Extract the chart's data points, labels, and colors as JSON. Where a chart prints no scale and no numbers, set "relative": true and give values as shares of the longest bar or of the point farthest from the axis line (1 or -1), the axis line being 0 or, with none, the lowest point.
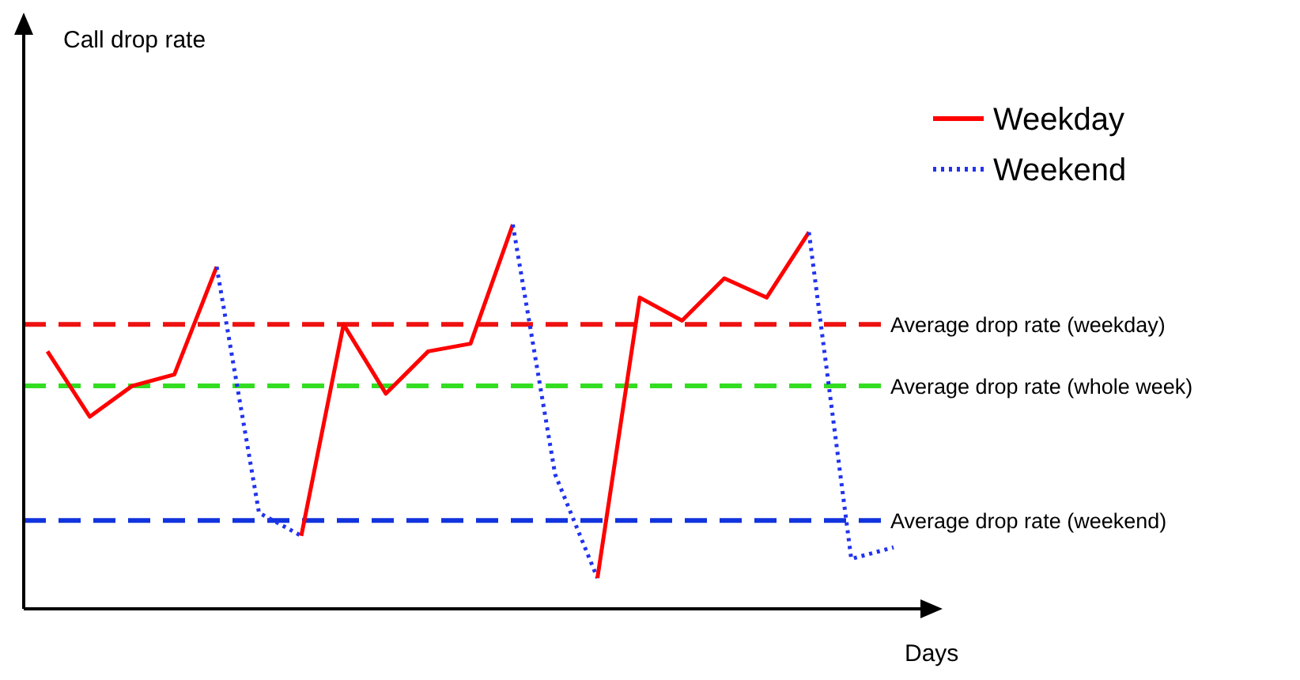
{
  "chart_data": {
    "type": "line",
    "relative": true,
    "xlabel": "Days",
    "annotations": [
      "Call drop rate"
    ],
    "legend": "top right",
    "marker": "none",
    "categories": [
      null,
      null,
      null,
      null,
      null,
      null,
      null,
      null,
      null,
      null,
      null,
      null,
      null,
      null,
      null,
      null,
      null,
      null,
      null,
      null,
      null
    ],
    "series": [
      {
        "name": "Weekday",
        "color": "#ff0000",
        "line_style": "solid",
        "values": [
          0.67,
          0.5,
          0.58,
          0.61,
          0.89,
          null,
          null,
          null,
          null,
          null,
          null,
          null,
          null,
          null,
          null,
          null,
          null,
          null,
          null,
          null,
          null
        ]
      },
      {
        "name": "Weekend",
        "color": "#2233ee",
        "line_style": "dotted",
        "values": [
          null,
          null,
          null,
          null,
          0.89,
          0.25,
          0.19,
          null,
          null,
          null,
          null,
          null,
          null,
          null,
          null,
          null,
          null,
          null,
          null,
          null,
          null
        ]
      },
      {
        "color": "#ff0000",
        "line_style": "solid",
        "values": [
          null,
          null,
          null,
          null,
          null,
          null,
          0.19,
          0.74,
          0.56,
          0.67,
          0.69,
          1,
          null,
          null,
          null,
          null,
          null,
          null,
          null,
          null,
          null
        ]
      },
      {
        "color": "#2233ee",
        "line_style": "dotted",
        "values": [
          null,
          null,
          null,
          null,
          null,
          null,
          null,
          null,
          null,
          null,
          null,
          1,
          0.35,
          0.08,
          null,
          null,
          null,
          null,
          null,
          null,
          null
        ]
      },
      {
        "color": "#ff0000",
        "line_style": "solid",
        "values": [
          null,
          null,
          null,
          null,
          null,
          null,
          null,
          null,
          null,
          null,
          null,
          null,
          null,
          0.08,
          0.81,
          0.75,
          0.86,
          0.81,
          0.98,
          null,
          null
        ]
      },
      {
        "color": "#2233ee",
        "line_style": "dotted",
        "values": [
          null,
          null,
          null,
          null,
          null,
          null,
          null,
          null,
          null,
          null,
          null,
          null,
          null,
          null,
          null,
          null,
          null,
          null,
          0.98,
          0.13,
          0.16
        ]
      }
    ],
    "ref_lines": [
      {
        "axis": "y",
        "value": 0.74,
        "label": "Average drop rate (weekday)",
        "color": "#ee1111",
        "line_style": "dashed"
      },
      {
        "axis": "y",
        "value": 0.58,
        "label": "Average drop rate (whole week)",
        "color": "#33dd22",
        "line_style": "dashed"
      },
      {
        "axis": "y",
        "value": 0.23,
        "label": "Average drop rate (weekend)",
        "color": "#1133dd",
        "line_style": "dashed"
      }
    ]
  }
}
